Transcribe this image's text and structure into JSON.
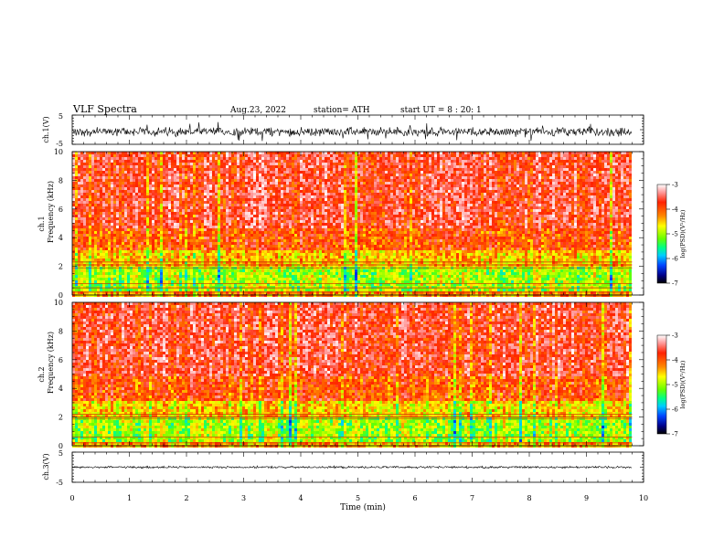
{
  "header": {
    "title": "VLF  Spectra",
    "date": "Aug.23, 2022",
    "station": "station= ATH",
    "start": "start  UT  =   8  : 20: 1"
  },
  "chart_data": [
    {
      "type": "line",
      "panel": "ch1-waveform",
      "ylabel": "ch.1(V)",
      "ylim": [
        -5,
        5
      ],
      "yticks": [
        "5",
        "-5"
      ],
      "xlim": [
        0,
        10
      ],
      "x_extent_min": 9.8,
      "trace_center": -0.7,
      "trace_amplitude_typical": 1.2,
      "trace_amplitude_peak": 3.5,
      "color": "#000000"
    },
    {
      "type": "heatmap",
      "panel": "ch1-spectrogram",
      "title_line1": "ch.1",
      "ylabel": "Frequency  (kHz)",
      "ylim": [
        0,
        10
      ],
      "yticks": [
        "0",
        "2",
        "4",
        "6",
        "8",
        "10"
      ],
      "xlim": [
        0,
        10
      ],
      "x_extent_min": 9.8,
      "bands": [
        {
          "freq": [
            0.0,
            0.4
          ],
          "level": -4.3
        },
        {
          "freq": [
            0.4,
            2.1
          ],
          "level": -5.0
        },
        {
          "freq": [
            2.1,
            3.3
          ],
          "level": -4.5
        },
        {
          "freq": [
            3.3,
            4.8
          ],
          "level": -4.0
        },
        {
          "freq": [
            4.8,
            10.0
          ],
          "level": -3.7
        }
      ],
      "lines_khz": [
        0.2,
        0.5,
        0.8,
        1.9,
        2.1,
        2.3
      ],
      "colorbar": {
        "label": "log(PSD)(V²/Hz)",
        "ticks": [
          "-3",
          "-4",
          "-5",
          "-6",
          "-7"
        ],
        "range": [
          -7,
          -3
        ]
      }
    },
    {
      "type": "heatmap",
      "panel": "ch2-spectrogram",
      "title_line1": "ch.2",
      "ylabel": "Frequency  (kHz)",
      "ylim": [
        0,
        10
      ],
      "yticks": [
        "0",
        "2",
        "4",
        "6",
        "8",
        "10"
      ],
      "xlim": [
        0,
        10
      ],
      "x_extent_min": 9.8,
      "bands": [
        {
          "freq": [
            0.0,
            0.3
          ],
          "level": -4.4
        },
        {
          "freq": [
            0.3,
            2.0
          ],
          "level": -5.0
        },
        {
          "freq": [
            2.0,
            3.3
          ],
          "level": -4.6
        },
        {
          "freq": [
            3.3,
            5.0
          ],
          "level": -4.0
        },
        {
          "freq": [
            5.0,
            10.0
          ],
          "level": -3.7
        }
      ],
      "lines_khz": [
        0.2,
        0.6,
        1.9,
        2.0,
        2.2
      ],
      "colorbar": {
        "label": "log(PSD)(V²/Hz)",
        "ticks": [
          "-3",
          "-4",
          "-5",
          "-6",
          "-7"
        ],
        "range": [
          -7,
          -3
        ]
      }
    },
    {
      "type": "line",
      "panel": "ch3-waveform",
      "ylabel": "ch.3(V)",
      "ylim": [
        -5,
        5
      ],
      "yticks": [
        "5",
        "-5"
      ],
      "xlim": [
        0,
        10
      ],
      "x_extent_min": 9.8,
      "trace_center": 0.0,
      "trace_amplitude_typical": 0.3,
      "color": "#000000",
      "xlabel": "Time  (min)",
      "xticks": [
        "0",
        "1",
        "2",
        "3",
        "4",
        "5",
        "6",
        "7",
        "8",
        "9",
        "10"
      ]
    }
  ],
  "colormap": [
    "#000000",
    "#0000aa",
    "#0066ff",
    "#00ccff",
    "#00ff66",
    "#66ff00",
    "#ffff00",
    "#ffcc00",
    "#ff6600",
    "#ff2200",
    "#ffffff"
  ]
}
